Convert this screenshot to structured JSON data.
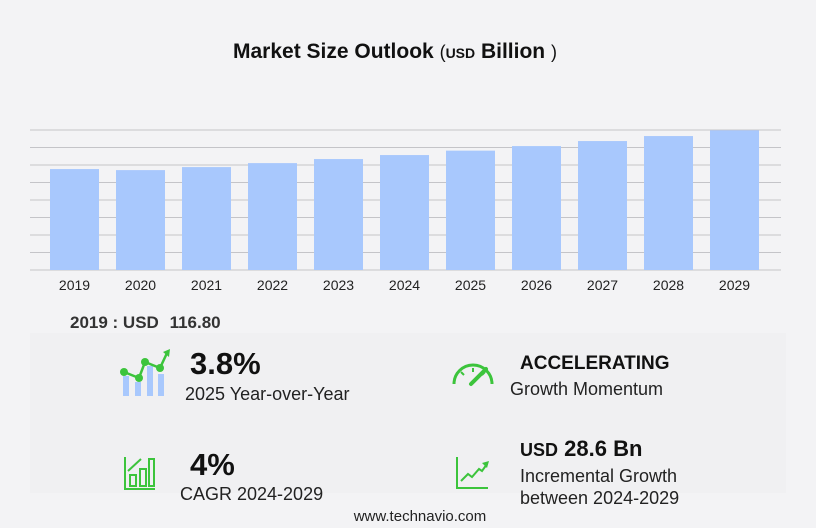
{
  "title": {
    "main": "Market Size Outlook",
    "unit": "USD",
    "unit_word": "Billion",
    "open": "(",
    "close": ")"
  },
  "chart_data": {
    "type": "bar",
    "title": "Market Size Outlook (USD Billion)",
    "categories": [
      "2019",
      "2020",
      "2021",
      "2022",
      "2023",
      "2024",
      "2025",
      "2026",
      "2027",
      "2028",
      "2029"
    ],
    "values": [
      116.8,
      115.6,
      119.1,
      123.7,
      128.4,
      133.0,
      138.1,
      143.4,
      149.2,
      155.0,
      161.6
    ],
    "ylim": [
      0,
      162
    ],
    "grid": true,
    "bar_color": "#a8c8fd"
  },
  "base_year": {
    "label": "2019 : USD",
    "value": "116.80"
  },
  "kpis": {
    "yoy": {
      "value": "3.8%",
      "label": "2025 Year-over-Year"
    },
    "momentum": {
      "value": "ACCELERATING",
      "label": "Growth Momentum"
    },
    "cagr": {
      "value": "4%",
      "label": "CAGR 2024-2029"
    },
    "incremental": {
      "unit": "USD",
      "value": "28.6 Bn",
      "label1": "Incremental Growth",
      "label2": "between 2024-2029"
    }
  },
  "colors": {
    "accent": "#3cc43c",
    "bar": "#a8c8fd"
  },
  "footer": "www.technavio.com"
}
